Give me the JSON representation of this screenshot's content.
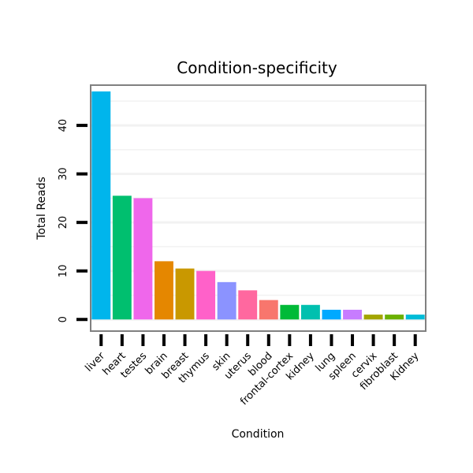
{
  "chart_data": {
    "type": "bar",
    "title": "Condition-specificity",
    "xlabel": "Condition",
    "ylabel": "Total Reads",
    "ylim": [
      -2.4,
      48.3
    ],
    "yticks": [
      0,
      10,
      20,
      30,
      40
    ],
    "grid": true,
    "legend": "none",
    "categories": [
      "liver",
      "heart",
      "testes",
      "brain",
      "breast",
      "thymus",
      "skin",
      "uterus",
      "blood",
      "frontal-cortex",
      "kidney",
      "lung",
      "spleen",
      "cervix",
      "fibroblast",
      "Kidney"
    ],
    "values": [
      47,
      25.5,
      25,
      12,
      10.5,
      10,
      7.7,
      6,
      4,
      3,
      3,
      2,
      2,
      1,
      1,
      1
    ],
    "colors": [
      "#00B5EC",
      "#00BF6F",
      "#EF67EB",
      "#E58700",
      "#C99800",
      "#FF61C9",
      "#8B93FF",
      "#FF689F",
      "#F8766D",
      "#00BA38",
      "#00C0AF",
      "#00A9FF",
      "#C77CFF",
      "#A3A500",
      "#6BB100",
      "#00BCD8"
    ]
  }
}
